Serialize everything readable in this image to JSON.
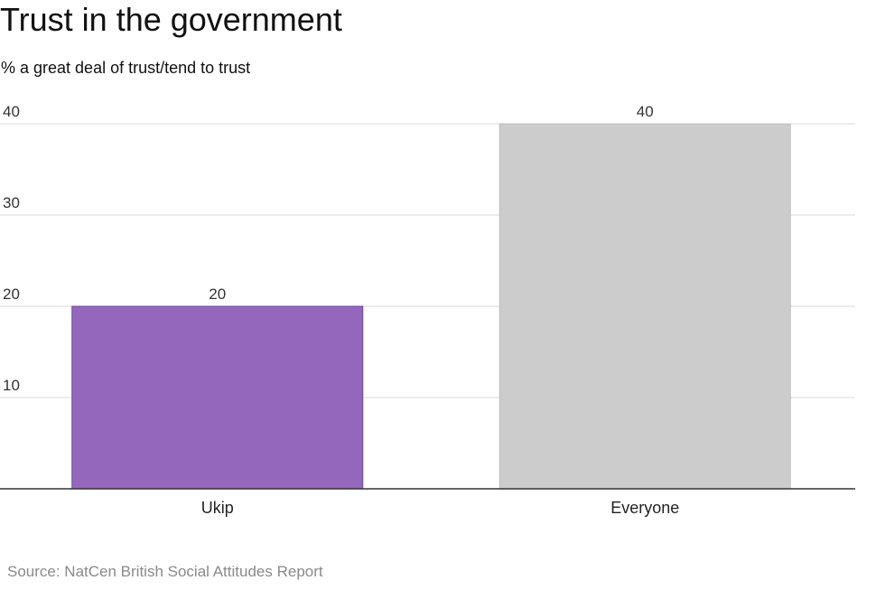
{
  "title": "Trust in the government",
  "subtitle": "% a great deal of trust/tend to trust",
  "source": "Source: NatCen British Social Attitudes Report",
  "chart_data": {
    "type": "bar",
    "categories": [
      "Ukip",
      "Everyone"
    ],
    "values": [
      20,
      40
    ],
    "data_labels": [
      "20",
      "40"
    ],
    "bar_colors": [
      "#9467bd",
      "#cccccc"
    ],
    "ylim": [
      0,
      40
    ],
    "yticks": [
      10,
      20,
      30,
      40
    ],
    "ytick_labels": [
      "10",
      "20",
      "30",
      "40"
    ],
    "grid": true,
    "legend": "none"
  }
}
